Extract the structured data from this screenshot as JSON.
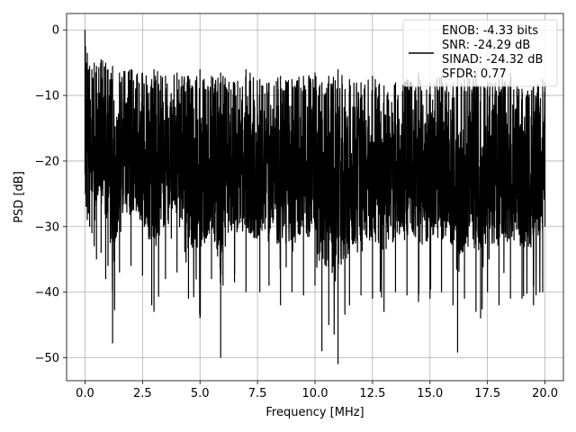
{
  "chart_data": {
    "type": "line",
    "xlabel": "Frequency [MHz]",
    "ylabel": "PSD [dB]",
    "xlim": [
      -0.8,
      20.8
    ],
    "ylim": [
      -53.5,
      2.5
    ],
    "xticks": [
      0.0,
      2.5,
      5.0,
      7.5,
      10.0,
      12.5,
      15.0,
      17.5,
      20.0
    ],
    "xtick_labels": [
      "0.0",
      "2.5",
      "5.0",
      "7.5",
      "10.0",
      "12.5",
      "15.0",
      "17.5",
      "20.0"
    ],
    "yticks": [
      0,
      -10,
      -20,
      -30,
      -40,
      -50
    ],
    "ytick_labels": [
      "0",
      "−10",
      "−20",
      "−30",
      "−40",
      "−50"
    ],
    "grid": true,
    "legend_position": "top-right",
    "colors": {
      "series": "#000000",
      "grid": "#b0b0b0",
      "axes": "#000000"
    },
    "series": [
      {
        "name": "ENOB: -4.33 bits\nSNR: -24.29 dB\nSINAD: -24.32 dB\nSFDR: 0.77",
        "legend_lines": [
          "ENOB: -4.33 bits",
          "SNR: -24.29 dB",
          "SINAD: -24.32 dB",
          "SFDR: 0.77"
        ],
        "x": [
          0.0,
          0.02,
          0.05,
          0.1,
          0.15,
          0.2,
          0.3,
          0.4,
          0.5,
          0.7,
          0.9,
          1.0,
          1.2,
          1.5,
          2.0,
          2.5,
          2.9,
          3.0,
          3.5,
          4.0,
          4.5,
          5.0,
          5.5,
          5.9,
          6.0,
          6.5,
          7.0,
          7.6,
          8.0,
          8.5,
          9.0,
          9.5,
          10.0,
          10.3,
          10.6,
          11.0,
          11.5,
          12.0,
          12.5,
          13.0,
          13.5,
          14.0,
          14.5,
          15.0,
          15.5,
          16.0,
          16.2,
          16.5,
          17.0,
          17.2,
          17.5,
          18.0,
          18.5,
          19.0,
          19.5,
          19.9,
          20.0
        ],
        "y_upper": [
          0.0,
          -2.5,
          -5.0,
          -3.5,
          -6.0,
          -5.5,
          -6.0,
          -5.0,
          -5.5,
          -4.5,
          -5.0,
          -6.0,
          -5.5,
          -6.5,
          -6.0,
          -6.5,
          -7.5,
          -6.0,
          -7.0,
          -6.5,
          -7.0,
          -6.0,
          -7.0,
          -6.5,
          -7.0,
          -8.0,
          -6.0,
          -7.5,
          -8.0,
          -7.0,
          -7.5,
          -7.0,
          -6.5,
          -8.0,
          -7.0,
          -6.0,
          -7.5,
          -8.0,
          -7.0,
          -8.5,
          -8.0,
          -7.5,
          -6.5,
          -8.0,
          -7.0,
          -8.0,
          -7.0,
          -7.5,
          -6.5,
          -8.5,
          -8.0,
          -7.5,
          -6.5,
          -9.0,
          -8.5,
          -7.5,
          -8.0
        ],
        "y_lower": [
          -22.0,
          -25.0,
          -27.0,
          -29.0,
          -28.0,
          -30.0,
          -31.0,
          -33.0,
          -35.0,
          -34.0,
          -38.0,
          -36.0,
          -47.8,
          -37.0,
          -36.0,
          -37.5,
          -42.0,
          -43.0,
          -38.0,
          -37.0,
          -41.0,
          -44.0,
          -38.0,
          -50.0,
          -39.0,
          -38.5,
          -40.0,
          -40.0,
          -39.0,
          -42.0,
          -40.0,
          -40.5,
          -39.0,
          -49.0,
          -45.0,
          -51.0,
          -42.0,
          -40.5,
          -41.0,
          -43.0,
          -40.0,
          -40.5,
          -41.5,
          -41.0,
          -40.0,
          -42.0,
          -49.2,
          -41.0,
          -43.0,
          -44.0,
          -40.0,
          -42.0,
          -41.0,
          -41.0,
          -42.0,
          -40.0,
          -30.0
        ]
      }
    ]
  }
}
